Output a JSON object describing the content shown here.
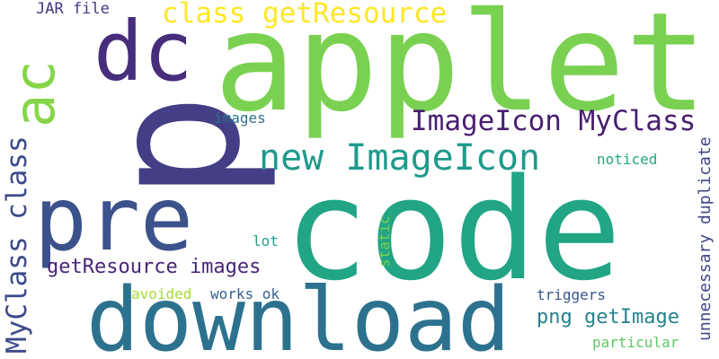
{
  "words": [
    {
      "text": "p",
      "color": "#433e85"
    },
    {
      "text": "code",
      "color": "#21a585"
    },
    {
      "text": "applet",
      "color": "#7ad151"
    },
    {
      "text": "download",
      "color": "#2c728e"
    },
    {
      "text": "pre",
      "color": "#3b528b"
    },
    {
      "text": "dc",
      "color": "#472d7b"
    },
    {
      "text": "ac",
      "color": "#86d549"
    },
    {
      "text": "new ImageIcon",
      "color": "#1f9a8a"
    },
    {
      "text": "ImageIcon MyClass",
      "color": "#481f70"
    },
    {
      "text": "class getResource",
      "color": "#fde725"
    },
    {
      "text": "MyClass class",
      "color": "#3e4a89"
    },
    {
      "text": "getResource images",
      "color": "#482576"
    },
    {
      "text": "png getImage",
      "color": "#26828e"
    },
    {
      "text": "unnecessary duplicate",
      "color": "#414487"
    },
    {
      "text": "JAR file",
      "color": "#453781"
    },
    {
      "text": "images",
      "color": "#2c728e"
    },
    {
      "text": "noticed",
      "color": "#22a884"
    },
    {
      "text": "lot",
      "color": "#1fa088"
    },
    {
      "text": "static",
      "color": "#7ad151"
    },
    {
      "text": "avoided",
      "color": "#a5db36"
    },
    {
      "text": "works ok",
      "color": "#355f8d"
    },
    {
      "text": "triggers",
      "color": "#39568c"
    },
    {
      "text": "particular",
      "color": "#5ec962"
    }
  ]
}
